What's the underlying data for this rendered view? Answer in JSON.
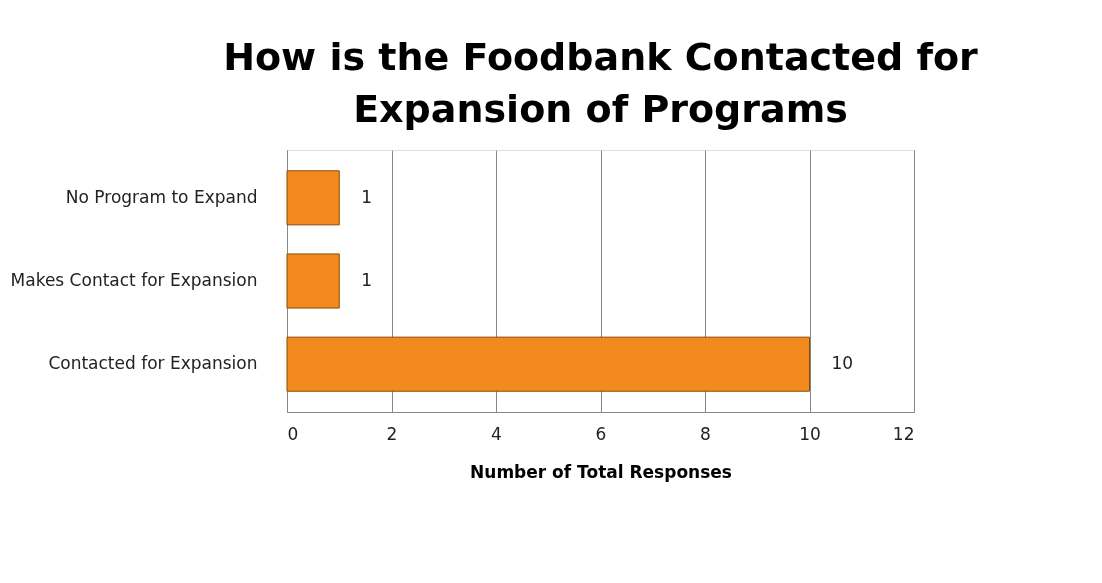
{
  "chart_data": {
    "type": "bar",
    "orientation": "horizontal",
    "title": "How is the Foodbank Contacted for Expansion of Programs",
    "xlabel": "Number of Total Responses",
    "categories": [
      "No Program to Expand",
      "Makes Contact for Expansion",
      "Contacted for Expansion"
    ],
    "values": [
      1,
      1,
      10
    ],
    "color": "#f28a1e",
    "xlim": [
      0,
      12
    ],
    "xticks": [
      0,
      2,
      4,
      6,
      8,
      10,
      12
    ],
    "grid": "x",
    "data_labels": true
  }
}
